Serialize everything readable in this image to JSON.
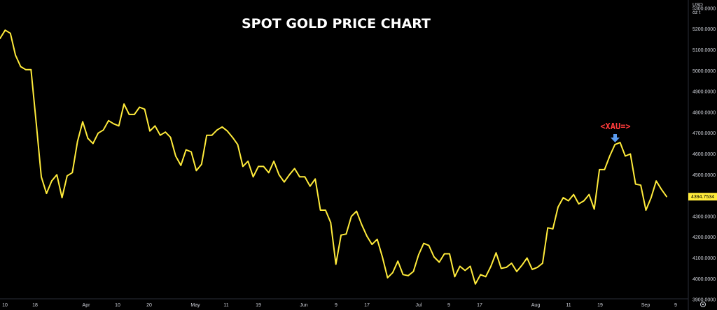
{
  "colors": {
    "background": "#000000",
    "line": "#ffeb3b",
    "annotation_text": "#ff3b3b",
    "annotation_arrow": "#5b9cf0",
    "axis_text": "#d1d4dc",
    "axis_border": "#2a2e39"
  },
  "axis": {
    "currency": "USD",
    "unit": "oz t",
    "settings_icon": "settings-gear-icon"
  },
  "chart_data": {
    "type": "line",
    "title": "SPOT GOLD PRICE CHART",
    "xlabel": "",
    "ylabel": "",
    "ylim": [
      3850,
      5340
    ],
    "grid": false,
    "y_ticks": [
      "5300.0000",
      "5200.0000",
      "5100.0000",
      "5000.0000",
      "4900.0000",
      "4800.0000",
      "4700.0000",
      "4600.0000",
      "4500.0000",
      "4400.0000",
      "4300.0000",
      "4200.0000",
      "4100.0000",
      "4000.0000",
      "3900.0000"
    ],
    "x_ticks": [
      "10",
      "18",
      "Apr",
      "10",
      "20",
      "May",
      "11",
      "19",
      "Jun",
      "9",
      "17",
      "Jul",
      "9",
      "17",
      "Aug",
      "11",
      "19",
      "Sep",
      "9"
    ],
    "last_value_label": "4394.7534",
    "annotation": "<XAU=>",
    "series": [
      {
        "values": [
          5155,
          5195,
          5180,
          5075,
          5020,
          5005,
          5005,
          4750,
          4490,
          4410,
          4470,
          4500,
          4390,
          4495,
          4510,
          4660,
          4755,
          4675,
          4650,
          4700,
          4715,
          4760,
          4745,
          4735,
          4840,
          4790,
          4790,
          4825,
          4815,
          4710,
          4735,
          4690,
          4705,
          4680,
          4590,
          4545,
          4620,
          4610,
          4520,
          4550,
          4690,
          4690,
          4715,
          4730,
          4710,
          4680,
          4645,
          4540,
          4565,
          4490,
          4540,
          4540,
          4510,
          4565,
          4500,
          4465,
          4500,
          4530,
          4490,
          4490,
          4445,
          4480,
          4330,
          4330,
          4270,
          4070,
          4210,
          4215,
          4300,
          4325,
          4260,
          4205,
          4165,
          4190,
          4105,
          4005,
          4030,
          4085,
          4020,
          4015,
          4035,
          4115,
          4170,
          4160,
          4105,
          4080,
          4120,
          4120,
          4010,
          4060,
          4040,
          4060,
          3975,
          4020,
          4010,
          4060,
          4125,
          4050,
          4055,
          4075,
          4035,
          4065,
          4100,
          4045,
          4055,
          4075,
          4245,
          4240,
          4345,
          4390,
          4375,
          4405,
          4360,
          4375,
          4405,
          4335,
          4525,
          4525,
          4590,
          4645,
          4655,
          4590,
          4600,
          4455,
          4450,
          4330,
          4390,
          4470,
          4430,
          4395
        ]
      }
    ]
  }
}
